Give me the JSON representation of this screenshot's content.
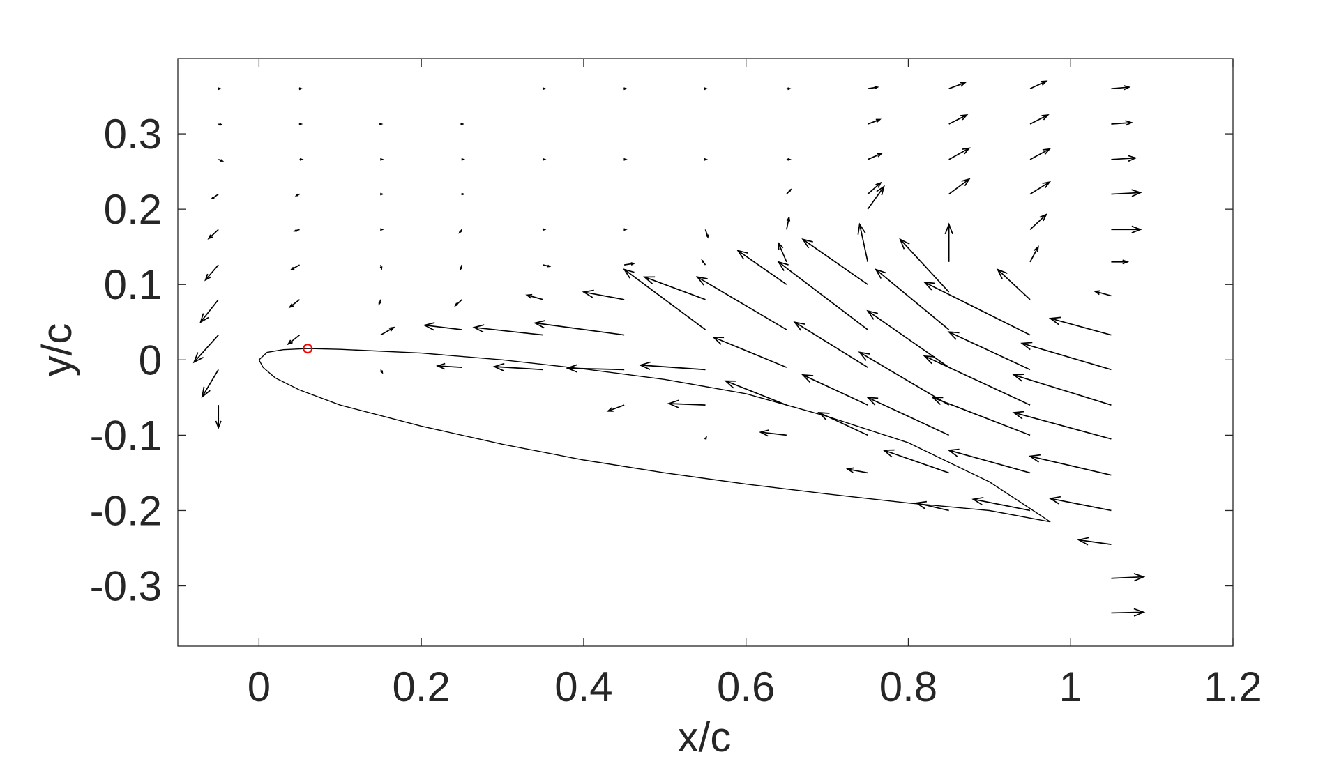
{
  "chart_data": {
    "type": "quiver",
    "title": "",
    "xlabel": "x/c",
    "ylabel": "y/c",
    "xlim": [
      -0.1,
      1.2
    ],
    "ylim": [
      -0.38,
      0.4
    ],
    "xticks": [
      0,
      0.2,
      0.4,
      0.6,
      0.8,
      1,
      1.2
    ],
    "yticks": [
      0.3,
      0.2,
      0.1,
      0,
      -0.1,
      -0.2,
      -0.3
    ],
    "xtick_labels": [
      "0",
      "0.2",
      "0.4",
      "0.6",
      "0.8",
      "1",
      "1.2"
    ],
    "ytick_labels": [
      "0.3",
      "0.2",
      "0.1",
      "0",
      "-0.1",
      "-0.2",
      "-0.3"
    ],
    "grid": false,
    "legend": "none",
    "colors": {
      "vectors": "#000000",
      "airfoil": "#000000",
      "marker": "#ff0000",
      "axes": "#262626"
    },
    "airfoil": {
      "upper": [
        [
          0.0,
          0.0
        ],
        [
          0.01,
          0.01
        ],
        [
          0.03,
          0.0135
        ],
        [
          0.06,
          0.015
        ],
        [
          0.1,
          0.014
        ],
        [
          0.2,
          0.009
        ],
        [
          0.3,
          0.0
        ],
        [
          0.4,
          -0.012
        ],
        [
          0.5,
          -0.026
        ],
        [
          0.6,
          -0.045
        ],
        [
          0.7,
          -0.075
        ],
        [
          0.8,
          -0.11
        ],
        [
          0.9,
          -0.162
        ],
        [
          0.975,
          -0.215
        ]
      ],
      "lower": [
        [
          0.0,
          0.0
        ],
        [
          0.005,
          -0.01
        ],
        [
          0.02,
          -0.024
        ],
        [
          0.05,
          -0.04
        ],
        [
          0.1,
          -0.06
        ],
        [
          0.2,
          -0.088
        ],
        [
          0.3,
          -0.112
        ],
        [
          0.4,
          -0.133
        ],
        [
          0.5,
          -0.15
        ],
        [
          0.6,
          -0.165
        ],
        [
          0.7,
          -0.178
        ],
        [
          0.8,
          -0.19
        ],
        [
          0.9,
          -0.2
        ],
        [
          0.975,
          -0.215
        ]
      ]
    },
    "marker": {
      "x": 0.06,
      "y": 0.015,
      "style": "circle"
    },
    "vectors": [
      {
        "x": -0.05,
        "y": 0.36,
        "u": 0.002,
        "v": 0
      },
      {
        "x": -0.05,
        "y": 0.313,
        "u": 0.004,
        "v": -0.001
      },
      {
        "x": -0.05,
        "y": 0.266,
        "u": 0.005,
        "v": -0.002
      },
      {
        "x": -0.05,
        "y": 0.22,
        "u": -0.008,
        "v": -0.006
      },
      {
        "x": -0.05,
        "y": 0.173,
        "u": -0.012,
        "v": -0.012
      },
      {
        "x": -0.05,
        "y": 0.126,
        "u": -0.016,
        "v": -0.02
      },
      {
        "x": -0.05,
        "y": 0.08,
        "u": -0.022,
        "v": -0.03
      },
      {
        "x": -0.05,
        "y": 0.033,
        "u": -0.03,
        "v": -0.036
      },
      {
        "x": -0.05,
        "y": -0.013,
        "u": -0.02,
        "v": -0.036
      },
      {
        "x": -0.05,
        "y": -0.06,
        "u": 0,
        "v": -0.03
      },
      {
        "x": 0.05,
        "y": 0.36,
        "u": 0.002,
        "v": 0
      },
      {
        "x": 0.05,
        "y": 0.313,
        "u": 0.002,
        "v": 0
      },
      {
        "x": 0.05,
        "y": 0.266,
        "u": 0.003,
        "v": 0
      },
      {
        "x": 0.05,
        "y": 0.22,
        "u": -0.004,
        "v": -0.002
      },
      {
        "x": 0.05,
        "y": 0.173,
        "u": -0.006,
        "v": -0.002
      },
      {
        "x": 0.05,
        "y": 0.126,
        "u": -0.01,
        "v": -0.006
      },
      {
        "x": 0.05,
        "y": 0.08,
        "u": -0.012,
        "v": -0.01
      },
      {
        "x": 0.05,
        "y": 0.033,
        "u": -0.014,
        "v": -0.012
      },
      {
        "x": 0.15,
        "y": 0.313,
        "u": 0.001,
        "v": 0
      },
      {
        "x": 0.15,
        "y": 0.266,
        "u": 0.002,
        "v": 0
      },
      {
        "x": 0.15,
        "y": 0.22,
        "u": 0.002,
        "v": 0
      },
      {
        "x": 0.15,
        "y": 0.173,
        "u": 0.002,
        "v": 0
      },
      {
        "x": 0.15,
        "y": 0.126,
        "u": 0.001,
        "v": -0.005
      },
      {
        "x": 0.15,
        "y": 0.08,
        "u": -0.002,
        "v": -0.006
      },
      {
        "x": 0.15,
        "y": 0.033,
        "u": 0.016,
        "v": 0.01
      },
      {
        "x": 0.15,
        "y": -0.013,
        "u": 0.002,
        "v": -0.004
      },
      {
        "x": 0.25,
        "y": 0.313,
        "u": 0.001,
        "v": 0
      },
      {
        "x": 0.25,
        "y": 0.266,
        "u": 0.002,
        "v": 0
      },
      {
        "x": 0.25,
        "y": 0.22,
        "u": 0.002,
        "v": 0
      },
      {
        "x": 0.25,
        "y": 0.173,
        "u": -0.003,
        "v": -0.004
      },
      {
        "x": 0.25,
        "y": 0.126,
        "u": -0.002,
        "v": -0.006
      },
      {
        "x": 0.25,
        "y": 0.08,
        "u": -0.008,
        "v": -0.008
      },
      {
        "x": 0.25,
        "y": 0.04,
        "u": -0.046,
        "v": 0.006
      },
      {
        "x": 0.25,
        "y": -0.01,
        "u": -0.03,
        "v": 0.002
      },
      {
        "x": 0.35,
        "y": 0.36,
        "u": 0.002,
        "v": 0
      },
      {
        "x": 0.35,
        "y": 0.266,
        "u": 0.002,
        "v": 0
      },
      {
        "x": 0.35,
        "y": 0.173,
        "u": 0.002,
        "v": 0
      },
      {
        "x": 0.35,
        "y": 0.126,
        "u": 0.008,
        "v": -0.002
      },
      {
        "x": 0.35,
        "y": 0.08,
        "u": -0.02,
        "v": 0.006
      },
      {
        "x": 0.35,
        "y": 0.033,
        "u": -0.085,
        "v": 0.01
      },
      {
        "x": 0.35,
        "y": -0.013,
        "u": -0.06,
        "v": 0.004
      },
      {
        "x": 0.45,
        "y": 0.36,
        "u": 0.002,
        "v": 0
      },
      {
        "x": 0.45,
        "y": 0.266,
        "u": 0.002,
        "v": 0
      },
      {
        "x": 0.45,
        "y": 0.173,
        "u": 0.002,
        "v": 0
      },
      {
        "x": 0.45,
        "y": 0.126,
        "u": 0.012,
        "v": 0.002
      },
      {
        "x": 0.45,
        "y": 0.08,
        "u": -0.05,
        "v": 0.01
      },
      {
        "x": 0.45,
        "y": 0.033,
        "u": -0.11,
        "v": 0.016
      },
      {
        "x": 0.45,
        "y": -0.013,
        "u": -0.07,
        "v": 0.002
      },
      {
        "x": 0.45,
        "y": -0.06,
        "u": -0.02,
        "v": -0.008
      },
      {
        "x": 0.55,
        "y": 0.36,
        "u": 0.001,
        "v": 0
      },
      {
        "x": 0.55,
        "y": 0.266,
        "u": 0.001,
        "v": 0
      },
      {
        "x": 0.55,
        "y": 0.173,
        "u": 0.003,
        "v": -0.01
      },
      {
        "x": 0.55,
        "y": 0.126,
        "u": -0.004,
        "v": 0.006
      },
      {
        "x": 0.55,
        "y": 0.08,
        "u": -0.075,
        "v": 0.03
      },
      {
        "x": 0.55,
        "y": 0.04,
        "u": -0.1,
        "v": 0.08
      },
      {
        "x": 0.55,
        "y": -0.013,
        "u": -0.08,
        "v": 0.006
      },
      {
        "x": 0.55,
        "y": -0.06,
        "u": -0.045,
        "v": 0.002
      },
      {
        "x": 0.55,
        "y": -0.105,
        "u": 0.001,
        "v": 0.002
      },
      {
        "x": 0.65,
        "y": 0.36,
        "u": 0.004,
        "v": 0
      },
      {
        "x": 0.65,
        "y": 0.266,
        "u": 0.004,
        "v": 0
      },
      {
        "x": 0.65,
        "y": 0.22,
        "u": 0.005,
        "v": 0.006
      },
      {
        "x": 0.65,
        "y": 0.173,
        "u": 0.003,
        "v": 0.016
      },
      {
        "x": 0.65,
        "y": 0.13,
        "u": -0.01,
        "v": 0.025
      },
      {
        "x": 0.65,
        "y": 0.1,
        "u": -0.06,
        "v": 0.045
      },
      {
        "x": 0.65,
        "y": 0.04,
        "u": -0.11,
        "v": 0.07
      },
      {
        "x": 0.65,
        "y": -0.01,
        "u": -0.09,
        "v": 0.04
      },
      {
        "x": 0.65,
        "y": -0.06,
        "u": -0.075,
        "v": 0.032
      },
      {
        "x": 0.65,
        "y": -0.1,
        "u": -0.032,
        "v": 0.004
      },
      {
        "x": 0.75,
        "y": 0.36,
        "u": 0.012,
        "v": 0.002
      },
      {
        "x": 0.75,
        "y": 0.313,
        "u": 0.015,
        "v": 0.006
      },
      {
        "x": 0.75,
        "y": 0.266,
        "u": 0.017,
        "v": 0.008
      },
      {
        "x": 0.75,
        "y": 0.22,
        "u": 0.016,
        "v": 0.015
      },
      {
        "x": 0.75,
        "y": 0.2,
        "u": 0.02,
        "v": 0.03
      },
      {
        "x": 0.75,
        "y": 0.13,
        "u": -0.01,
        "v": 0.05
      },
      {
        "x": 0.75,
        "y": 0.1,
        "u": -0.08,
        "v": 0.06
      },
      {
        "x": 0.75,
        "y": 0.04,
        "u": -0.11,
        "v": 0.09
      },
      {
        "x": 0.75,
        "y": -0.01,
        "u": -0.09,
        "v": 0.06
      },
      {
        "x": 0.75,
        "y": -0.06,
        "u": -0.08,
        "v": 0.04
      },
      {
        "x": 0.75,
        "y": -0.1,
        "u": -0.06,
        "v": 0.03
      },
      {
        "x": 0.75,
        "y": -0.15,
        "u": -0.025,
        "v": 0.005
      },
      {
        "x": 0.85,
        "y": 0.36,
        "u": 0.02,
        "v": 0.008
      },
      {
        "x": 0.85,
        "y": 0.313,
        "u": 0.022,
        "v": 0.012
      },
      {
        "x": 0.85,
        "y": 0.266,
        "u": 0.025,
        "v": 0.015
      },
      {
        "x": 0.85,
        "y": 0.22,
        "u": 0.025,
        "v": 0.02
      },
      {
        "x": 0.85,
        "y": 0.13,
        "u": 0,
        "v": 0.05
      },
      {
        "x": 0.85,
        "y": 0.09,
        "u": -0.06,
        "v": 0.07
      },
      {
        "x": 0.85,
        "y": 0.04,
        "u": -0.09,
        "v": 0.08
      },
      {
        "x": 0.85,
        "y": -0.01,
        "u": -0.1,
        "v": 0.075
      },
      {
        "x": 0.85,
        "y": -0.06,
        "u": -0.11,
        "v": 0.07
      },
      {
        "x": 0.85,
        "y": -0.1,
        "u": -0.1,
        "v": 0.05
      },
      {
        "x": 0.85,
        "y": -0.15,
        "u": -0.08,
        "v": 0.03
      },
      {
        "x": 0.85,
        "y": -0.2,
        "u": -0.04,
        "v": 0.01
      },
      {
        "x": 0.95,
        "y": 0.36,
        "u": 0.02,
        "v": 0.01
      },
      {
        "x": 0.95,
        "y": 0.313,
        "u": 0.022,
        "v": 0.012
      },
      {
        "x": 0.95,
        "y": 0.266,
        "u": 0.024,
        "v": 0.014
      },
      {
        "x": 0.95,
        "y": 0.22,
        "u": 0.024,
        "v": 0.016
      },
      {
        "x": 0.95,
        "y": 0.173,
        "u": 0.02,
        "v": 0.02
      },
      {
        "x": 0.95,
        "y": 0.13,
        "u": 0.01,
        "v": 0.02
      },
      {
        "x": 0.95,
        "y": 0.08,
        "u": -0.04,
        "v": 0.04
      },
      {
        "x": 0.95,
        "y": 0.033,
        "u": -0.13,
        "v": 0.07
      },
      {
        "x": 0.95,
        "y": -0.013,
        "u": -0.1,
        "v": 0.05
      },
      {
        "x": 0.95,
        "y": -0.06,
        "u": -0.13,
        "v": 0.065
      },
      {
        "x": 0.95,
        "y": -0.1,
        "u": -0.12,
        "v": 0.05
      },
      {
        "x": 0.95,
        "y": -0.15,
        "u": -0.1,
        "v": 0.03
      },
      {
        "x": 0.95,
        "y": -0.2,
        "u": -0.07,
        "v": 0.015
      },
      {
        "x": 1.05,
        "y": 0.36,
        "u": 0.022,
        "v": 0.002
      },
      {
        "x": 1.05,
        "y": 0.313,
        "u": 0.025,
        "v": 0.002
      },
      {
        "x": 1.05,
        "y": 0.266,
        "u": 0.03,
        "v": 0.002
      },
      {
        "x": 1.05,
        "y": 0.22,
        "u": 0.036,
        "v": 0.002
      },
      {
        "x": 1.05,
        "y": 0.173,
        "u": 0.036,
        "v": 0
      },
      {
        "x": 1.05,
        "y": 0.13,
        "u": 0.02,
        "v": 0
      },
      {
        "x": 1.05,
        "y": 0.085,
        "u": -0.02,
        "v": 0.006
      },
      {
        "x": 1.05,
        "y": 0.033,
        "u": -0.075,
        "v": 0.022
      },
      {
        "x": 1.05,
        "y": -0.013,
        "u": -0.11,
        "v": 0.035
      },
      {
        "x": 1.05,
        "y": -0.06,
        "u": -0.12,
        "v": 0.04
      },
      {
        "x": 1.05,
        "y": -0.105,
        "u": -0.12,
        "v": 0.035
      },
      {
        "x": 1.05,
        "y": -0.153,
        "u": -0.1,
        "v": 0.025
      },
      {
        "x": 1.05,
        "y": -0.2,
        "u": -0.075,
        "v": 0.016
      },
      {
        "x": 1.05,
        "y": -0.245,
        "u": -0.04,
        "v": 0.006
      },
      {
        "x": 1.05,
        "y": -0.29,
        "u": 0.04,
        "v": 0.002
      },
      {
        "x": 1.05,
        "y": -0.336,
        "u": 0.04,
        "v": 0.001
      }
    ]
  }
}
